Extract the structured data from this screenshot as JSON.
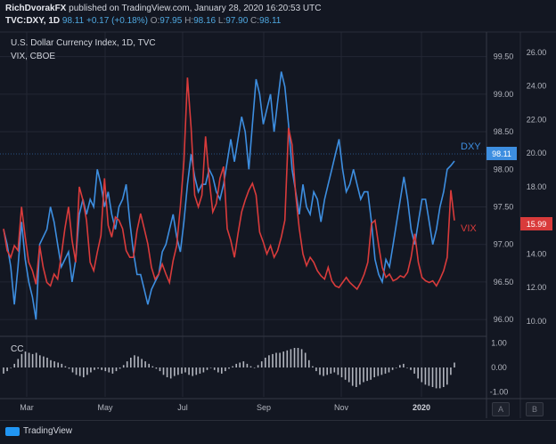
{
  "header": {
    "author": "RichDvorakFX",
    "published": "published on TradingView.com, January 28, 2020 16:20:53 UTC",
    "symbol": "TVC:DXY, 1D",
    "last": "98.11",
    "change": "+0.17 (+0.18%)",
    "o_label": "O:",
    "o_value": "97.95",
    "h_label": "H:",
    "h_value": "98.16",
    "l_label": "L:",
    "l_value": "97.90",
    "c_label": "C:",
    "c_value": "98.11"
  },
  "legend": {
    "line1": "U.S. Dollar Currency Index, 1D, TVC",
    "line2": "VIX, CBOE"
  },
  "sub_pane_label": "CC",
  "buttons": {
    "a": "A",
    "b": "B"
  },
  "brand": "TradingView",
  "colors": {
    "dxy": "#3d8ee0",
    "vix": "#d93b3b",
    "cc": "#b2b5be",
    "bg": "#131722",
    "grid": "#2a2e39"
  },
  "chart_data": [
    {
      "type": "line",
      "x_ticks": [
        "Mar",
        "May",
        "Jul",
        "Sep",
        "Nov",
        "2020"
      ],
      "left_axis": {
        "ticks": [
          "99.50",
          "99.00",
          "98.50",
          "98.00",
          "97.50",
          "97.00",
          "96.50",
          "96.00"
        ],
        "ylim": [
          95.8,
          99.78
        ]
      },
      "right_axis": {
        "ticks": [
          "26.00",
          "24.00",
          "22.00",
          "20.00",
          "18.00",
          "16.00",
          "14.00",
          "12.00",
          "10.00"
        ],
        "ylim": [
          9.2,
          27.0
        ]
      },
      "series": [
        {
          "name": "DXY",
          "axis": "left",
          "last_label": "98.11",
          "values": [
            97.2,
            97.0,
            96.7,
            96.2,
            96.7,
            97.3,
            96.8,
            96.5,
            96.3,
            96.0,
            97.0,
            97.1,
            97.2,
            97.5,
            97.3,
            97.0,
            96.7,
            96.8,
            96.9,
            96.5,
            96.8,
            97.4,
            97.6,
            97.4,
            97.6,
            97.5,
            98.0,
            97.8,
            97.5,
            97.7,
            97.4,
            97.2,
            97.5,
            97.6,
            97.8,
            97.3,
            96.9,
            96.6,
            96.6,
            96.4,
            96.2,
            96.4,
            96.5,
            96.6,
            96.9,
            97.0,
            97.2,
            97.4,
            97.1,
            96.9,
            97.3,
            97.8,
            98.2,
            97.9,
            97.7,
            97.8,
            97.8,
            98.0,
            97.9,
            97.7,
            97.6,
            97.8,
            98.1,
            98.4,
            98.1,
            98.4,
            98.7,
            98.5,
            98.0,
            98.6,
            99.2,
            99.0,
            98.6,
            98.8,
            99.0,
            98.5,
            98.9,
            99.3,
            99.1,
            98.6,
            98.0,
            97.7,
            97.4,
            97.8,
            97.5,
            97.4,
            97.7,
            97.6,
            97.3,
            97.6,
            97.8,
            98.0,
            98.2,
            98.4,
            98.0,
            97.7,
            97.8,
            98.0,
            97.8,
            97.6,
            97.7,
            97.7,
            97.3,
            96.8,
            96.6,
            96.5,
            96.8,
            96.7,
            97.0,
            97.3,
            97.6,
            97.9,
            97.6,
            97.2,
            97.0,
            97.3,
            97.6,
            97.6,
            97.3,
            97.0,
            97.2,
            97.5,
            97.7,
            98.0,
            98.05,
            98.11
          ]
        },
        {
          "name": "VIX",
          "axis": "right",
          "last_label": "15.99",
          "values": [
            15.5,
            14.2,
            13.8,
            14.5,
            14.2,
            16.8,
            15.0,
            13.5,
            13.0,
            12.2,
            14.5,
            13.2,
            12.3,
            12.1,
            12.8,
            12.5,
            13.9,
            15.5,
            16.8,
            14.8,
            13.5,
            18.0,
            17.2,
            16.0,
            13.5,
            13.0,
            14.1,
            15.1,
            18.5,
            15.7,
            15.0,
            16.2,
            16.0,
            15.5,
            14.2,
            13.8,
            13.8,
            15.4,
            16.4,
            15.5,
            14.6,
            13.2,
            12.5,
            12.8,
            13.4,
            12.8,
            12.3,
            13.6,
            14.5,
            16.8,
            19.5,
            24.5,
            21.5,
            17.5,
            16.8,
            17.5,
            21.0,
            18.5,
            16.5,
            17.0,
            18.5,
            19.2,
            15.5,
            14.8,
            13.8,
            15.2,
            16.5,
            17.2,
            17.8,
            18.2,
            17.5,
            15.3,
            14.7,
            14.0,
            14.5,
            13.8,
            14.2,
            15.0,
            16.0,
            21.5,
            20.5,
            17.5,
            15.5,
            14.0,
            13.3,
            13.8,
            13.5,
            13.0,
            12.7,
            12.5,
            13.2,
            12.4,
            12.1,
            12.0,
            12.3,
            12.6,
            12.3,
            12.1,
            11.9,
            12.3,
            12.8,
            13.5,
            15.8,
            16.0,
            14.5,
            13.2,
            12.6,
            12.8,
            12.4,
            12.5,
            12.7,
            12.6,
            12.9,
            13.8,
            15.2,
            13.5,
            12.6,
            12.4,
            12.3,
            12.4,
            12.1,
            12.5,
            13.0,
            13.8,
            17.8,
            15.99
          ]
        }
      ]
    },
    {
      "type": "bar",
      "name": "CC",
      "y_ticks": [
        "1.00",
        "0.00",
        "-1.00"
      ],
      "ylim": [
        -1.2,
        1.2
      ],
      "values": [
        -0.25,
        -0.15,
        0.0,
        0.15,
        0.35,
        0.55,
        0.65,
        0.6,
        0.55,
        0.6,
        0.5,
        0.45,
        0.4,
        0.3,
        0.25,
        0.2,
        0.15,
        0.05,
        -0.05,
        -0.2,
        -0.3,
        -0.35,
        -0.4,
        -0.3,
        -0.2,
        -0.1,
        -0.05,
        -0.1,
        -0.15,
        -0.2,
        -0.25,
        -0.15,
        -0.05,
        0.1,
        0.25,
        0.4,
        0.5,
        0.45,
        0.35,
        0.25,
        0.15,
        0.05,
        -0.05,
        -0.15,
        -0.3,
        -0.4,
        -0.45,
        -0.35,
        -0.3,
        -0.25,
        -0.2,
        -0.3,
        -0.35,
        -0.3,
        -0.25,
        -0.2,
        -0.1,
        0.0,
        -0.1,
        -0.2,
        -0.25,
        -0.15,
        -0.05,
        0.05,
        0.15,
        0.2,
        0.25,
        0.15,
        0.05,
        0.0,
        0.1,
        0.25,
        0.4,
        0.5,
        0.55,
        0.6,
        0.6,
        0.65,
        0.7,
        0.75,
        0.8,
        0.8,
        0.75,
        0.6,
        0.3,
        0.05,
        -0.15,
        -0.3,
        -0.35,
        -0.3,
        -0.25,
        -0.2,
        -0.3,
        -0.4,
        -0.5,
        -0.6,
        -0.75,
        -0.8,
        -0.7,
        -0.6,
        -0.55,
        -0.5,
        -0.4,
        -0.35,
        -0.3,
        -0.25,
        -0.2,
        -0.1,
        0.0,
        0.1,
        0.15,
        0.0,
        -0.1,
        -0.25,
        -0.45,
        -0.6,
        -0.7,
        -0.75,
        -0.8,
        -0.85,
        -0.85,
        -0.8,
        -0.7,
        -0.3,
        0.2
      ]
    }
  ]
}
